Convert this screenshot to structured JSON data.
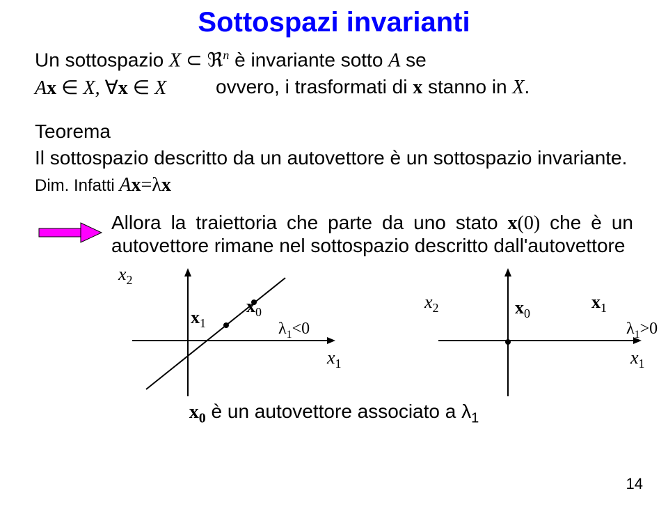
{
  "title": {
    "text": "Sottospazi invarianti",
    "color": "#0000ff",
    "fontsize": 40
  },
  "body_fontsize": 28,
  "line1_a": "Un sottospazio ",
  "line1_b": "X",
  "line1_c": " ⊂ ℜ",
  "line1_sup": "n",
  "line1_d": "   è invariante sotto ",
  "line1_e": "A",
  "line1_f": " se",
  "line2_a": "A",
  "line2_b": "x",
  "line2_c": " ∈ ",
  "line2_d": "X, ",
  "line2_e": "∀",
  "line2_f": "x",
  "line2_g": " ∈ ",
  "line2_h": "X",
  "line2_right_a": "ovvero, i trasformati di ",
  "line2_right_b": "x",
  "line2_right_c": " stanno in ",
  "line2_right_d": "X",
  "line2_right_e": ".",
  "teorema": "Teorema",
  "theorem_body": "Il sottospazio descritto da un autovettore è un sottospazio invariante.",
  "dim_a": "Dim.",
  "dim_b": " Infatti ",
  "dim_c": "A",
  "dim_d": "x",
  "dim_e": "=λ",
  "dim_f": "x",
  "allora_a": "Allora la traiettoria che parte da uno stato ",
  "allora_b": "x",
  "allora_c": "(0)",
  "allora_d": " che è un autovettore rimane nel sottospazio descritto dall'autovettore",
  "arrow": {
    "fill": "#ff00ff",
    "stroke": "#000000"
  },
  "axes": {
    "stroke": "#000000",
    "stroke_width": 2
  },
  "diag_left": {
    "x2_label": "x",
    "x2_sub": "2",
    "x1_label": "x",
    "x1_sub": "1",
    "xb1": "x",
    "xb1_sub": "1",
    "xb0": "x",
    "xb0_sub": "0",
    "lambda": "λ",
    "lambda_sub": "1",
    "lambda_rel": "<0",
    "line_start": [
      40,
      180
    ],
    "line_end": [
      240,
      20
    ],
    "dot0": [
      195,
      55
    ],
    "dot1": [
      155,
      88
    ]
  },
  "diag_right": {
    "x2_label": "x",
    "x2_sub": "2",
    "x1_label": "x",
    "x1_sub": "1",
    "xb1": "x",
    "xb1_sub": "1",
    "xb0": "x",
    "xb0_sub": "0",
    "lambda": "λ",
    "lambda_sub": "1",
    "lambda_rel": ">0",
    "dot0": [
      160,
      112
    ]
  },
  "footer_a": "x",
  "footer_asub": "0",
  "footer_b": " è un autovettore associato a λ",
  "footer_bsub": "1",
  "page": "14"
}
